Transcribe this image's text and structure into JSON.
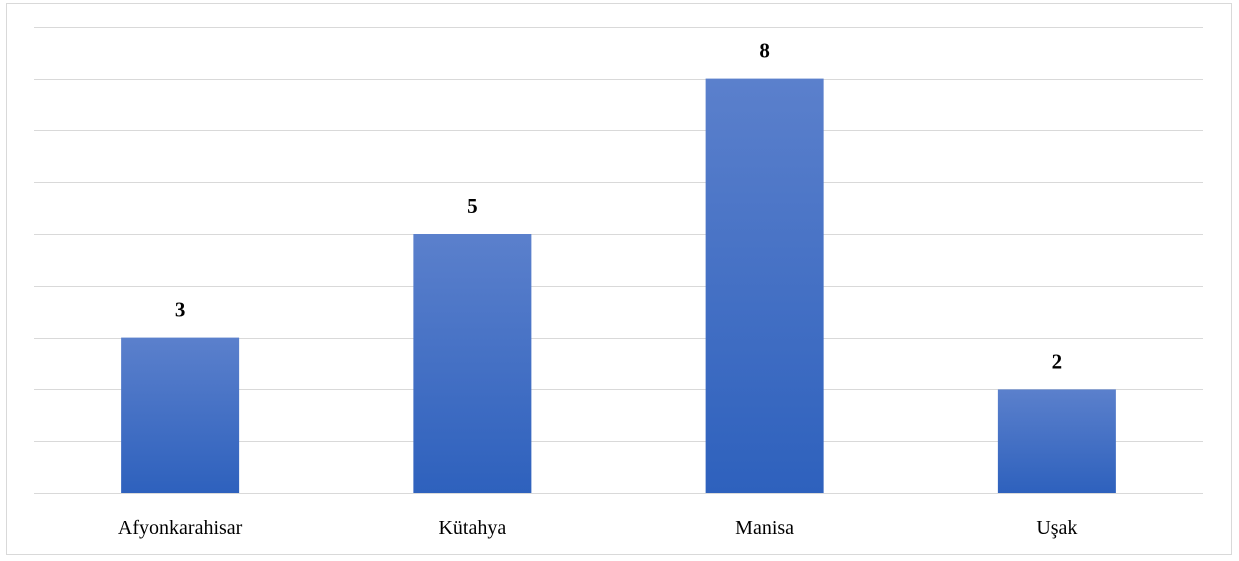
{
  "chart_data": {
    "type": "bar",
    "title": "",
    "xlabel": "",
    "ylabel": "",
    "categories": [
      "Afyonkarahisar",
      "Kütahya",
      "Manisa",
      "Uşak"
    ],
    "values": [
      3,
      5,
      8,
      2
    ],
    "ylim": [
      0,
      9
    ],
    "grid": true,
    "gridlines": 9,
    "legend": "none",
    "data_labels": true,
    "colors": {
      "bar_top": "#5b80cc",
      "bar_bottom": "#2e61bd",
      "grid": "#d9d9d9",
      "border": "#d9d9d9"
    }
  }
}
